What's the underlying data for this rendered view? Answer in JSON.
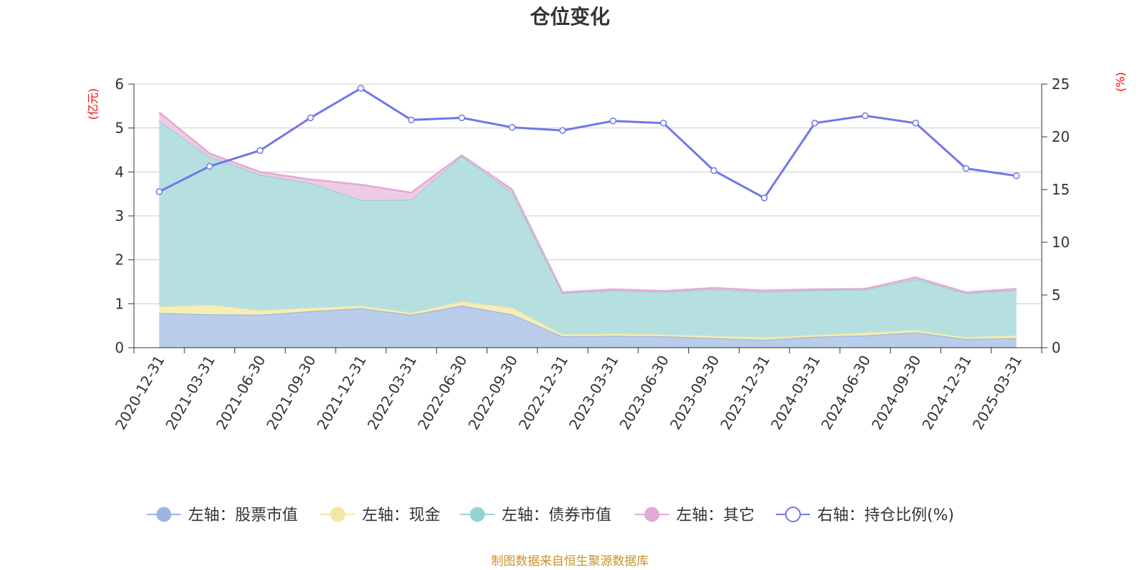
{
  "chart_data": {
    "type": "area",
    "title": "仓位变化",
    "left_axis_unit": "(亿元)",
    "right_axis_unit": "(%)",
    "categories": [
      "2020-12-31",
      "2021-03-31",
      "2021-06-30",
      "2021-09-30",
      "2021-12-31",
      "2022-03-31",
      "2022-06-30",
      "2022-09-30",
      "2022-12-31",
      "2023-03-31",
      "2023-06-30",
      "2023-09-30",
      "2023-12-31",
      "2024-03-31",
      "2024-06-30",
      "2024-09-30",
      "2024-12-31",
      "2025-03-31"
    ],
    "left_ylim": [
      0,
      6
    ],
    "left_yticks": [
      0,
      1,
      2,
      3,
      4,
      5,
      6
    ],
    "right_ylim": [
      0,
      25
    ],
    "right_yticks": [
      0,
      5,
      10,
      15,
      20,
      25
    ],
    "grid": true,
    "stacked_series": [
      {
        "name": "左轴：股票市值",
        "axis": "left",
        "color": "#9db6e0",
        "fill": "#b9cdea",
        "values": [
          0.79,
          0.76,
          0.75,
          0.83,
          0.9,
          0.75,
          0.96,
          0.76,
          0.26,
          0.27,
          0.26,
          0.22,
          0.18,
          0.25,
          0.28,
          0.35,
          0.2,
          0.22
        ]
      },
      {
        "name": "左轴：现金",
        "axis": "left",
        "color": "#f3e6a3",
        "fill": "#f6eeb6",
        "values": [
          0.14,
          0.22,
          0.1,
          0.08,
          0.05,
          0.05,
          0.09,
          0.15,
          0.04,
          0.05,
          0.04,
          0.05,
          0.05,
          0.04,
          0.06,
          0.05,
          0.04,
          0.06
        ]
      },
      {
        "name": "左轴：债券市值",
        "axis": "left",
        "color": "#95d3d3",
        "fill": "#b6e0e0",
        "values": [
          4.23,
          3.36,
          3.09,
          2.84,
          2.41,
          2.57,
          3.31,
          2.62,
          0.94,
          0.98,
          0.97,
          1.06,
          1.04,
          1.02,
          0.98,
          1.16,
          1.0,
          1.03
        ]
      },
      {
        "name": "左轴：其它",
        "axis": "left",
        "color": "#e4a9d6",
        "fill": "#edcbe4",
        "values": [
          0.2,
          0.08,
          0.06,
          0.08,
          0.35,
          0.16,
          0.02,
          0.07,
          0.02,
          0.03,
          0.02,
          0.03,
          0.03,
          0.02,
          0.02,
          0.04,
          0.02,
          0.03
        ]
      }
    ],
    "line_series": {
      "name": "右轴：持仓比例(%)",
      "axis": "right",
      "color": "#7177ea",
      "values": [
        14.8,
        17.2,
        18.7,
        21.8,
        24.6,
        21.6,
        21.8,
        20.9,
        20.6,
        21.5,
        21.3,
        16.8,
        14.2,
        21.3,
        22.0,
        21.3,
        17.0,
        16.3
      ]
    },
    "legend_position": "bottom-center"
  },
  "source_note": "制图数据来自恒生聚源数据库",
  "colors": {
    "axis_unit": "#ff0000",
    "source": "#c9922b",
    "grid": "#cccccc",
    "axis": "#333333"
  }
}
